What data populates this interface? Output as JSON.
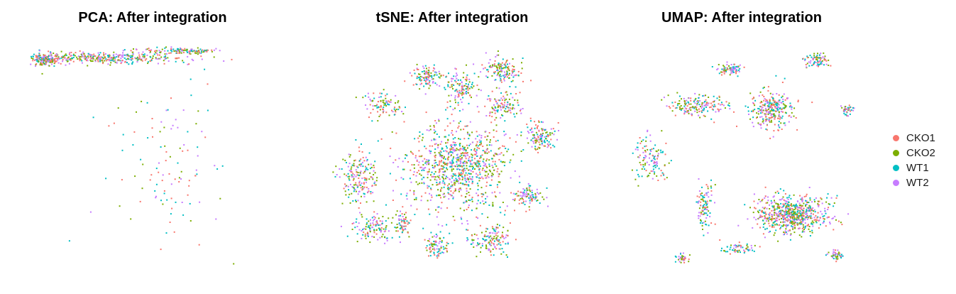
{
  "chart_data": [
    {
      "type": "scatter",
      "title": "PCA: After integration",
      "xlabel": "",
      "ylabel": "",
      "grid": false,
      "series": [
        "CKO1",
        "CKO2",
        "WT1",
        "WT2"
      ],
      "clusters": [
        {
          "x": 0.3,
          "y": 0.93,
          "spread": [
            0.28,
            0.022
          ],
          "n": 380
        },
        {
          "x": 0.07,
          "y": 0.92,
          "spread": [
            0.05,
            0.025
          ],
          "n": 160
        },
        {
          "x": 0.62,
          "y": 0.96,
          "spread": [
            0.12,
            0.012
          ],
          "n": 120
        },
        {
          "x": 0.55,
          "y": 0.45,
          "spread": [
            0.2,
            0.3
          ],
          "n": 110
        }
      ]
    },
    {
      "type": "scatter",
      "title": "tSNE: After integration",
      "xlabel": "",
      "ylabel": "",
      "grid": false,
      "series": [
        "CKO1",
        "CKO2",
        "WT1",
        "WT2"
      ],
      "clusters": [
        {
          "x": 0.52,
          "y": 0.45,
          "spread": [
            0.17,
            0.16
          ],
          "n": 900
        },
        {
          "x": 0.12,
          "y": 0.4,
          "spread": [
            0.06,
            0.1
          ],
          "n": 180
        },
        {
          "x": 0.18,
          "y": 0.18,
          "spread": [
            0.07,
            0.05
          ],
          "n": 120
        },
        {
          "x": 0.22,
          "y": 0.72,
          "spread": [
            0.06,
            0.05
          ],
          "n": 90
        },
        {
          "x": 0.4,
          "y": 0.85,
          "spread": [
            0.05,
            0.04
          ],
          "n": 110
        },
        {
          "x": 0.53,
          "y": 0.8,
          "spread": [
            0.05,
            0.06
          ],
          "n": 120
        },
        {
          "x": 0.7,
          "y": 0.88,
          "spread": [
            0.07,
            0.04
          ],
          "n": 140
        },
        {
          "x": 0.7,
          "y": 0.72,
          "spread": [
            0.06,
            0.05
          ],
          "n": 110
        },
        {
          "x": 0.85,
          "y": 0.58,
          "spread": [
            0.05,
            0.05
          ],
          "n": 130
        },
        {
          "x": 0.8,
          "y": 0.32,
          "spread": [
            0.05,
            0.04
          ],
          "n": 90
        },
        {
          "x": 0.65,
          "y": 0.13,
          "spread": [
            0.07,
            0.05
          ],
          "n": 140
        },
        {
          "x": 0.44,
          "y": 0.1,
          "spread": [
            0.04,
            0.04
          ],
          "n": 80
        },
        {
          "x": 0.3,
          "y": 0.2,
          "spread": [
            0.03,
            0.05
          ],
          "n": 60
        }
      ]
    },
    {
      "type": "scatter",
      "title": "UMAP: After integration",
      "xlabel": "",
      "ylabel": "",
      "grid": false,
      "series": [
        "CKO1",
        "CKO2",
        "WT1",
        "WT2"
      ],
      "clusters": [
        {
          "x": 0.7,
          "y": 0.24,
          "spread": [
            0.12,
            0.07
          ],
          "n": 650
        },
        {
          "x": 0.62,
          "y": 0.7,
          "spread": [
            0.07,
            0.07
          ],
          "n": 280
        },
        {
          "x": 0.32,
          "y": 0.72,
          "spread": [
            0.1,
            0.04
          ],
          "n": 170
        },
        {
          "x": 0.45,
          "y": 0.88,
          "spread": [
            0.04,
            0.02
          ],
          "n": 80
        },
        {
          "x": 0.8,
          "y": 0.92,
          "spread": [
            0.04,
            0.03
          ],
          "n": 80
        },
        {
          "x": 0.13,
          "y": 0.48,
          "spread": [
            0.06,
            0.08
          ],
          "n": 120
        },
        {
          "x": 0.35,
          "y": 0.28,
          "spread": [
            0.03,
            0.08
          ],
          "n": 100
        },
        {
          "x": 0.48,
          "y": 0.09,
          "spread": [
            0.05,
            0.02
          ],
          "n": 60
        },
        {
          "x": 0.26,
          "y": 0.05,
          "spread": [
            0.02,
            0.015
          ],
          "n": 40
        },
        {
          "x": 0.88,
          "y": 0.06,
          "spread": [
            0.03,
            0.015
          ],
          "n": 40
        },
        {
          "x": 0.92,
          "y": 0.7,
          "spread": [
            0.02,
            0.02
          ],
          "n": 40
        }
      ]
    }
  ],
  "legend": {
    "position": "right",
    "items": [
      {
        "label": "CKO1",
        "color": "#F8766D"
      },
      {
        "label": "CKO2",
        "color": "#7CAE00"
      },
      {
        "label": "WT1",
        "color": "#00BFC4"
      },
      {
        "label": "WT2",
        "color": "#C77CFF"
      }
    ]
  }
}
